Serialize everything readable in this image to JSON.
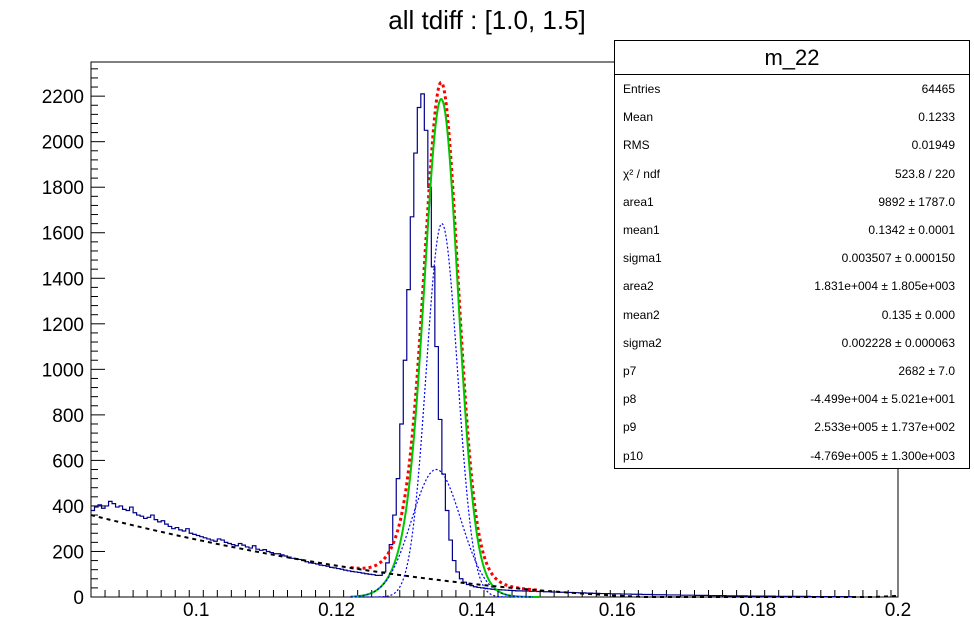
{
  "chart_data": {
    "type": "histogram",
    "title": "all tdiff : [1.0, 1.5]",
    "xlabel": "",
    "ylabel": "",
    "xlim": [
      0.085,
      0.2
    ],
    "ylim": [
      0,
      2350
    ],
    "x_ticks": [
      0.1,
      0.12,
      0.14,
      0.16,
      0.18,
      0.2
    ],
    "x_tick_labels": [
      "0.1",
      "0.12",
      "0.14",
      "0.16",
      "0.18",
      "0.2"
    ],
    "y_ticks": [
      0,
      200,
      400,
      600,
      800,
      1000,
      1200,
      1400,
      1600,
      1800,
      2000,
      2200
    ],
    "y_tick_labels": [
      "0",
      "200",
      "400",
      "600",
      "800",
      "1000",
      "1200",
      "1400",
      "1600",
      "1800",
      "2000",
      "2200"
    ],
    "grid": false,
    "legend": "none",
    "histogram": {
      "name": "m_22",
      "color": "#00008b",
      "bin_width": 0.0005,
      "x_start": 0.085,
      "counts": [
        380,
        395,
        405,
        390,
        400,
        420,
        410,
        395,
        400,
        385,
        380,
        395,
        370,
        360,
        355,
        345,
        350,
        360,
        340,
        330,
        335,
        320,
        310,
        300,
        305,
        295,
        290,
        300,
        280,
        275,
        270,
        265,
        260,
        255,
        250,
        245,
        255,
        250,
        240,
        235,
        230,
        225,
        235,
        228,
        220,
        215,
        225,
        210,
        205,
        208,
        200,
        195,
        190,
        190,
        185,
        180,
        175,
        170,
        168,
        165,
        160,
        155,
        150,
        148,
        145,
        140,
        138,
        135,
        130,
        128,
        125,
        122,
        118,
        115,
        112,
        110,
        108,
        105,
        102,
        100,
        98,
        95,
        95,
        110,
        150,
        230,
        360,
        520,
        760,
        1040,
        1350,
        1670,
        1950,
        2150,
        2210,
        2050,
        1800,
        1450,
        1100,
        780,
        540,
        380,
        250,
        160,
        110,
        80,
        65,
        55,
        50,
        45,
        42,
        40,
        38,
        36,
        34,
        33,
        32,
        31,
        30,
        29,
        28,
        27,
        27,
        26,
        26,
        25,
        25,
        24,
        24,
        23,
        23,
        22,
        22,
        21,
        21,
        20,
        20,
        19,
        19,
        18,
        18,
        17,
        17,
        16,
        16,
        15,
        15,
        15,
        14,
        14,
        14,
        13,
        13,
        13,
        12,
        12,
        12,
        11,
        11,
        11,
        10,
        10,
        10,
        10,
        9,
        9,
        9,
        9,
        8,
        8,
        8,
        8,
        7,
        7,
        7,
        7,
        6,
        6,
        6,
        6,
        6,
        5,
        5,
        5,
        5,
        5,
        5,
        4,
        4,
        4,
        4,
        4,
        4,
        4,
        4,
        3,
        3,
        3,
        3,
        3,
        3,
        3,
        3,
        3,
        3,
        2,
        2,
        2,
        2,
        2,
        2,
        2,
        2,
        2,
        2,
        2,
        2,
        2
      ]
    },
    "fit_curves": [
      {
        "name": "total fit",
        "color": "#ff0000",
        "dash": "3,3",
        "width": 3
      },
      {
        "name": "signal sum",
        "color": "#00c800",
        "dash": "",
        "width": 2
      },
      {
        "name": "gaussian 1",
        "color": "#0000ff",
        "dash": "2,2",
        "width": 1.2
      },
      {
        "name": "gaussian 2",
        "color": "#0000ff",
        "dash": "2,2",
        "width": 1.2
      },
      {
        "name": "background",
        "color": "#000000",
        "dash": "4,4",
        "width": 2
      }
    ],
    "fit_params": {
      "area1": 9892,
      "mean1": 0.1342,
      "sigma1": 0.003507,
      "area2": 18310,
      "mean2": 0.135,
      "sigma2": 0.002228,
      "gauss1_peak": 560,
      "gauss2_peak": 1640,
      "bg_at_0085": 360,
      "bg_at_0145": 40,
      "bg_at_0200": 5
    },
    "stats": {
      "title": "m_22",
      "rows": [
        {
          "label": "Entries",
          "value": "64465"
        },
        {
          "label": "Mean",
          "value": "0.1233"
        },
        {
          "label": "RMS",
          "value": "0.01949"
        },
        {
          "label": "χ² / ndf",
          "value": "523.8 / 220"
        },
        {
          "label": "area1",
          "value": "9892 ± 1787.0"
        },
        {
          "label": "mean1",
          "value": "0.1342 ± 0.0001"
        },
        {
          "label": "sigma1",
          "value": "0.003507 ± 0.000150"
        },
        {
          "label": "area2",
          "value": "1.831e+004 ± 1.805e+003"
        },
        {
          "label": "mean2",
          "value": "0.135 ± 0.000"
        },
        {
          "label": "sigma2",
          "value": "0.002228 ± 0.000063"
        },
        {
          "label": "p7",
          "value": "2682 ± 7.0"
        },
        {
          "label": "p8",
          "value": "-4.499e+004 ± 5.021e+001"
        },
        {
          "label": "p9",
          "value": "2.533e+005 ± 1.737e+002"
        },
        {
          "label": "p10",
          "value": "-4.769e+005 ± 1.300e+003"
        }
      ]
    }
  }
}
